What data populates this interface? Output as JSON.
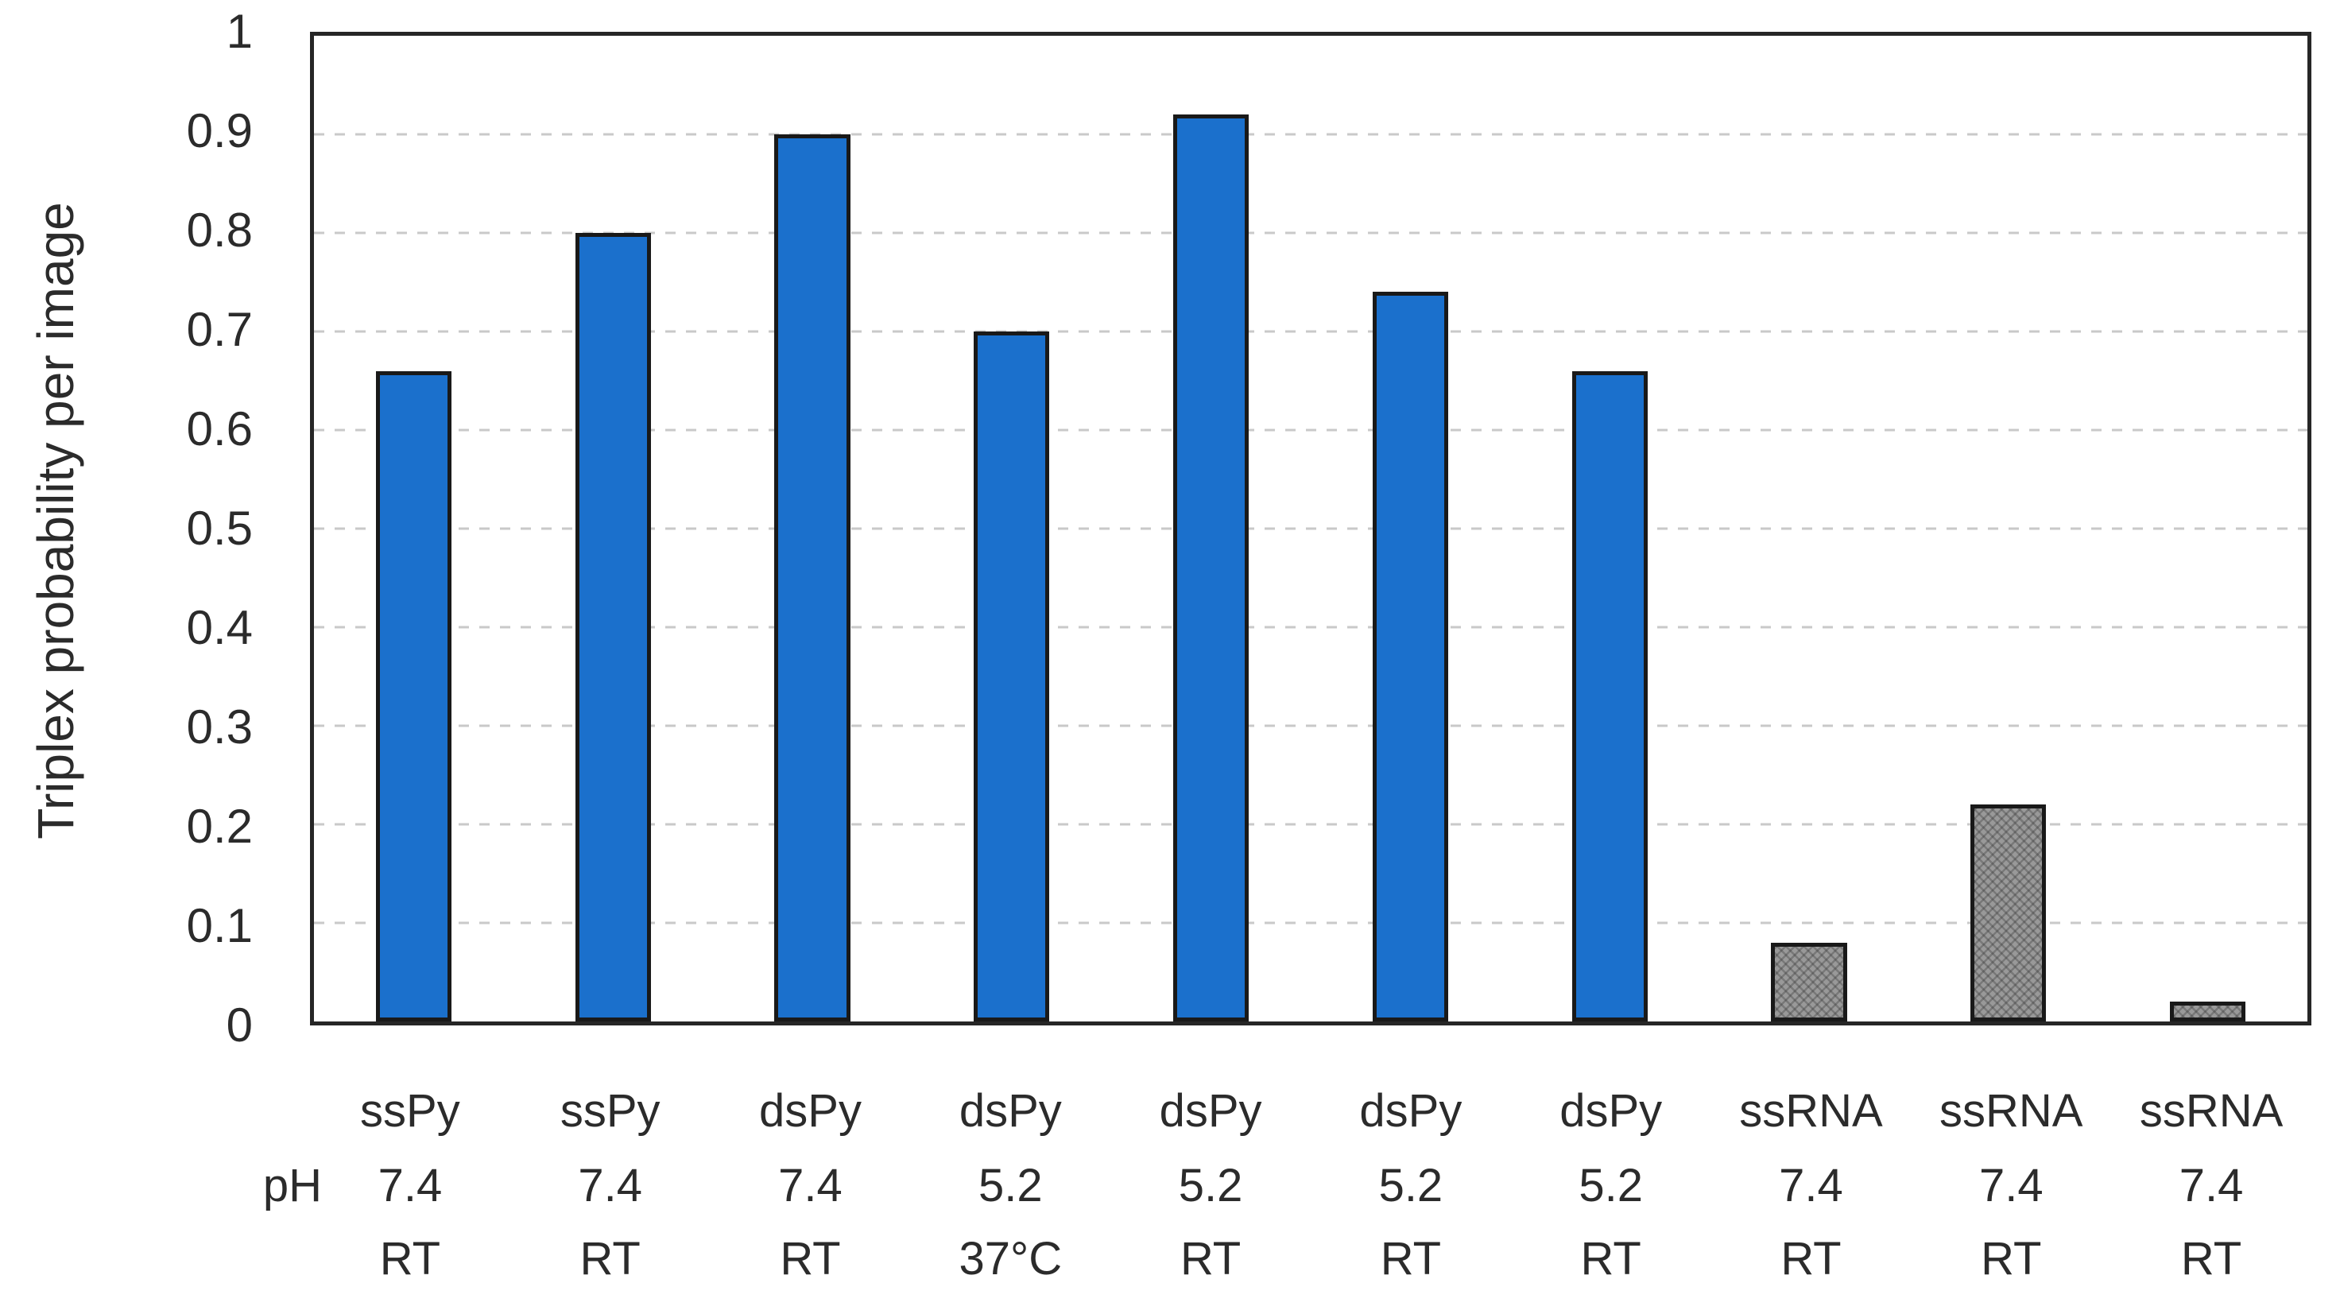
{
  "chart_data": {
    "type": "bar",
    "title": "",
    "xlabel": "",
    "ylabel": "Triplex probability per image",
    "ylim": [
      0,
      1
    ],
    "ytick_labels": [
      "1",
      "0.9",
      "0.8",
      "0.7",
      "0.6",
      "0.5",
      "0.4",
      "0.3",
      "0.2",
      "0.1",
      "0"
    ],
    "ytick_values": [
      1,
      0.9,
      0.8,
      0.7,
      0.6,
      0.5,
      0.4,
      0.3,
      0.2,
      0.1,
      0
    ],
    "gridlines": {
      "style": "dashed",
      "values": [
        0.1,
        0.2,
        0.3,
        0.4,
        0.5,
        0.6,
        0.7,
        0.8,
        0.9
      ]
    },
    "legend": "none",
    "ph_row_prefix": "pH",
    "categories": [
      {
        "sample": "ssPy",
        "ph": "7.4",
        "temp": "RT"
      },
      {
        "sample": "ssPy",
        "ph": "7.4",
        "temp": "RT"
      },
      {
        "sample": "dsPy",
        "ph": "7.4",
        "temp": "RT"
      },
      {
        "sample": "dsPy",
        "ph": "5.2",
        "temp": "37°C"
      },
      {
        "sample": "dsPy",
        "ph": "5.2",
        "temp": "RT"
      },
      {
        "sample": "dsPy",
        "ph": "5.2",
        "temp": "RT"
      },
      {
        "sample": "dsPy",
        "ph": "5.2",
        "temp": "RT"
      },
      {
        "sample": "ssRNA",
        "ph": "7.4",
        "temp": "RT"
      },
      {
        "sample": "ssRNA",
        "ph": "7.4",
        "temp": "RT"
      },
      {
        "sample": "ssRNA",
        "ph": "7.4",
        "temp": "RT"
      }
    ],
    "values": [
      0.66,
      0.8,
      0.9,
      0.7,
      0.92,
      0.74,
      0.66,
      0.08,
      0.22,
      0.02
    ],
    "bar_styles": [
      "blue",
      "blue",
      "blue",
      "blue",
      "blue",
      "blue",
      "blue",
      "gray-pattern",
      "gray-pattern",
      "gray-pattern"
    ],
    "colors": {
      "bar_blue": "#1b70cc",
      "bar_gray": "#999999",
      "bar_outline": "#191919",
      "frame": "#262626",
      "gridline": "#c9c9c9",
      "text": "#2b2b2b"
    }
  }
}
